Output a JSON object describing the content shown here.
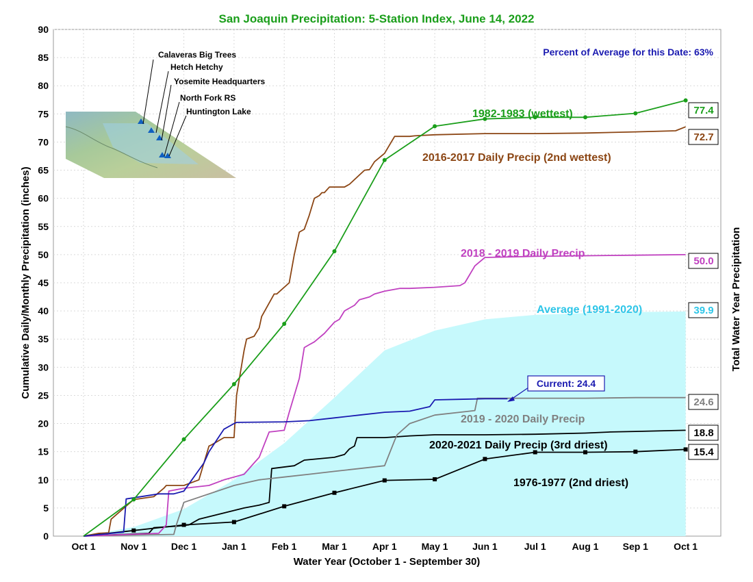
{
  "chart_data": {
    "type": "line",
    "title": "San Joaquin Precipitation: 5-Station Index, June 14, 2022",
    "subtitle": "Percent of Average for this Date: 63%",
    "xlabel": "Water Year (October 1 - September 30)",
    "ylabel": "Cumulative Daily/Monthly Precipitation (inches)",
    "ylabel_right": "Total Water Year Precipitation",
    "ylim": [
      0,
      90
    ],
    "yticks": [
      "0",
      "5",
      "10",
      "15",
      "20",
      "25",
      "30",
      "35",
      "40",
      "45",
      "50",
      "55",
      "60",
      "65",
      "70",
      "75",
      "80",
      "85",
      "90"
    ],
    "xticks": [
      "Oct 1",
      "Nov 1",
      "Dec 1",
      "Jan 1",
      "Feb 1",
      "Mar 1",
      "Apr 1",
      "May 1",
      "Jun 1",
      "Jul 1",
      "Aug 1",
      "Sep 1",
      "Oct 1"
    ],
    "grid": true,
    "stations": [
      "Calaveras Big Trees",
      "Hetch Hetchy",
      "Yosemite Headquarters",
      "North Fork RS",
      "Huntington Lake"
    ],
    "current_label": "Current: 24.4",
    "series": [
      {
        "name": "1982-1983 (wettest)",
        "color": "#1a9e1a",
        "end_value": "77.4",
        "x": [
          0,
          1,
          2,
          3,
          4,
          5,
          6,
          7,
          8,
          9,
          10,
          11,
          12
        ],
        "y": [
          0,
          6.5,
          17.2,
          27,
          37.7,
          50.6,
          66.8,
          72.8,
          74.1,
          74.4,
          74.4,
          75.1,
          77.4
        ]
      },
      {
        "name": "2016-2017 Daily Precip (2nd wettest)",
        "color": "#8b4513",
        "end_value": "72.7",
        "x": [
          0,
          0.3,
          0.5,
          0.55,
          1.0,
          1.4,
          1.6,
          1.65,
          2.0,
          2.3,
          2.4,
          2.5,
          2.55,
          2.8,
          3.0,
          3.05,
          3.2,
          3.25,
          3.4,
          3.5,
          3.55,
          3.8,
          3.85,
          4.1,
          4.2,
          4.3,
          4.4,
          4.5,
          4.6,
          4.7,
          4.75,
          4.8,
          4.9,
          5.2,
          5.3,
          5.6,
          5.7,
          5.8,
          6.0,
          6.2,
          6.3,
          6.5,
          6.6,
          7.0,
          8.0,
          9.0,
          10.0,
          11.0,
          11.8,
          12.0
        ],
        "y": [
          0,
          0.5,
          0.6,
          3,
          6.5,
          7,
          8.5,
          9,
          9,
          10,
          13,
          16,
          16.2,
          17.5,
          17.5,
          25,
          33,
          35,
          35.5,
          37,
          39,
          43,
          43,
          45,
          50,
          54,
          54.5,
          57,
          60,
          60.5,
          61,
          61,
          62,
          62,
          62.5,
          65,
          65.1,
          66.5,
          68,
          71,
          71,
          71,
          71.1,
          71.3,
          71.5,
          71.5,
          71.6,
          71.8,
          72,
          72.7
        ]
      },
      {
        "name": "2018 - 2019 Daily Precip",
        "color": "#c040c0",
        "end_value": "50.0",
        "x": [
          0,
          1.5,
          1.65,
          1.7,
          2.0,
          2.5,
          2.8,
          3.0,
          3.2,
          3.4,
          3.5,
          3.7,
          3.8,
          4.0,
          4.1,
          4.2,
          4.3,
          4.4,
          4.5,
          4.6,
          4.8,
          5.0,
          5.1,
          5.2,
          5.4,
          5.5,
          5.7,
          5.8,
          6.0,
          6.3,
          6.5,
          7.0,
          7.5,
          7.6,
          7.8,
          8.0,
          8.5,
          9.0,
          10.0,
          11.0,
          12.0
        ],
        "y": [
          0,
          0.5,
          2,
          8,
          8.5,
          9,
          10,
          10.5,
          11,
          13,
          14,
          18.5,
          18.6,
          18.8,
          22,
          25,
          28,
          33.5,
          34,
          34.5,
          36,
          38,
          38.5,
          40,
          41,
          42,
          42.5,
          43,
          43.5,
          44,
          44,
          44.2,
          44.5,
          45,
          48,
          49.5,
          49.6,
          49.7,
          49.8,
          49.9,
          50.0
        ]
      },
      {
        "name": "Average (1991-2020)",
        "color": "#2ec6e8",
        "fill": "#c6f9fc",
        "end_value": "39.9",
        "x": [
          0,
          1,
          2,
          3,
          4,
          5,
          6,
          7,
          8,
          9,
          10,
          11,
          12
        ],
        "y": [
          0,
          1.6,
          4.8,
          10.0,
          16.5,
          24.6,
          33.0,
          36.5,
          38.5,
          39.3,
          39.6,
          39.8,
          39.9
        ]
      },
      {
        "name": "Current",
        "color": "#1a1ab0",
        "end_value": "",
        "x": [
          0,
          0.8,
          0.85,
          1.5,
          1.8,
          2.0,
          2.4,
          2.5,
          2.65,
          2.8,
          3.0,
          3.05,
          4.0,
          4.5,
          5.0,
          5.5,
          6.0,
          6.5,
          6.9,
          7.0,
          7.5,
          8.0,
          8.45
        ],
        "y": [
          0,
          0.7,
          6.6,
          7.5,
          7.5,
          8,
          13,
          15,
          17,
          19,
          20,
          20.2,
          20.3,
          20.5,
          21,
          21.5,
          22,
          22.2,
          23,
          24.2,
          24.3,
          24.4,
          24.4
        ]
      },
      {
        "name": "2019 - 2020 Daily Precip",
        "color": "#808080",
        "end_value": "24.6",
        "x": [
          0,
          1.8,
          1.85,
          2.0,
          3.0,
          3.5,
          4.0,
          4.5,
          5.0,
          5.5,
          6.0,
          6.2,
          6.25,
          6.5,
          7.0,
          7.5,
          7.8,
          7.85,
          8.0,
          9.0,
          10.0,
          11.0,
          12.0
        ],
        "y": [
          0,
          0.3,
          2,
          6,
          9,
          10,
          10.5,
          11,
          11.5,
          12,
          12.5,
          17,
          18,
          20,
          21.5,
          22,
          22.3,
          24.5,
          24.5,
          24.5,
          24.5,
          24.6,
          24.6
        ]
      },
      {
        "name": "2020-2021 Daily Precip (3rd driest)",
        "color": "#000000",
        "end_value": "18.8",
        "x": [
          0,
          1.3,
          1.4,
          1.9,
          2.1,
          2.3,
          3.2,
          3.5,
          3.7,
          3.75,
          4.2,
          4.4,
          5.0,
          5.2,
          5.3,
          5.4,
          5.45,
          6.0,
          6.5,
          7.0,
          8.0,
          9.0,
          10.0,
          10.5,
          11.0,
          12.0
        ],
        "y": [
          0,
          0.5,
          1.5,
          1.8,
          2,
          3,
          5,
          5.5,
          6,
          12,
          12.5,
          13.5,
          14,
          14.5,
          15.5,
          16,
          17.5,
          17.5,
          17.8,
          18,
          18,
          18.1,
          18.3,
          18.5,
          18.6,
          18.8
        ]
      },
      {
        "name": "1976-1977 (2nd driest)",
        "color": "#000000",
        "end_value": "15.4",
        "x": [
          0,
          1,
          2,
          3,
          4,
          5,
          6,
          7,
          8,
          9,
          10,
          11,
          12
        ],
        "y": [
          0,
          1.0,
          2.0,
          2.5,
          5.3,
          7.7,
          9.9,
          10.1,
          13.7,
          14.9,
          14.9,
          15.0,
          15.4
        ]
      }
    ]
  }
}
